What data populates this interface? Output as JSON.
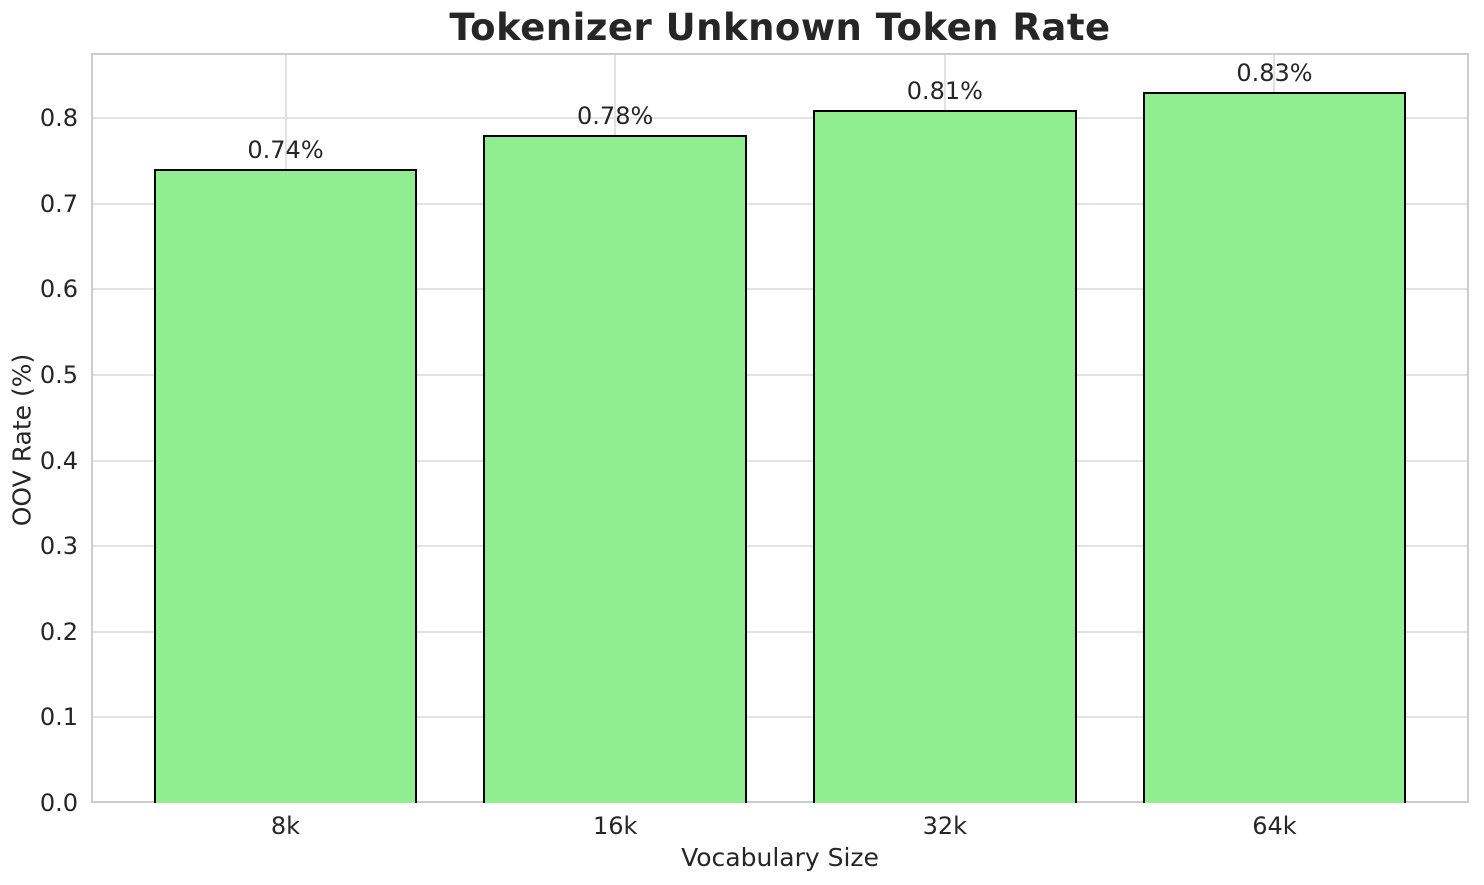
{
  "chart_data": {
    "type": "bar",
    "title": "Tokenizer Unknown Token Rate",
    "xlabel": "Vocabulary Size",
    "ylabel": "OOV Rate (%)",
    "categories": [
      "8k",
      "16k",
      "32k",
      "64k"
    ],
    "values": [
      0.74,
      0.78,
      0.81,
      0.83
    ],
    "bar_labels": [
      "0.74%",
      "0.78%",
      "0.81%",
      "0.83%"
    ],
    "ylim": [
      0,
      0.876
    ],
    "yticks": [
      0,
      0.1,
      0.2,
      0.3,
      0.4,
      0.5,
      0.6,
      0.7,
      0.8
    ],
    "ytick_labels": [
      "0.0",
      "0.1",
      "0.2",
      "0.3",
      "0.4",
      "0.5",
      "0.6",
      "0.7",
      "0.8"
    ],
    "grid": true,
    "legend": "none",
    "colors": {
      "bar_fill": "#90ee90",
      "bar_edge": "#000000",
      "grid": "#e2e2e2",
      "spine": "#cccccc",
      "text": "#262626"
    }
  }
}
